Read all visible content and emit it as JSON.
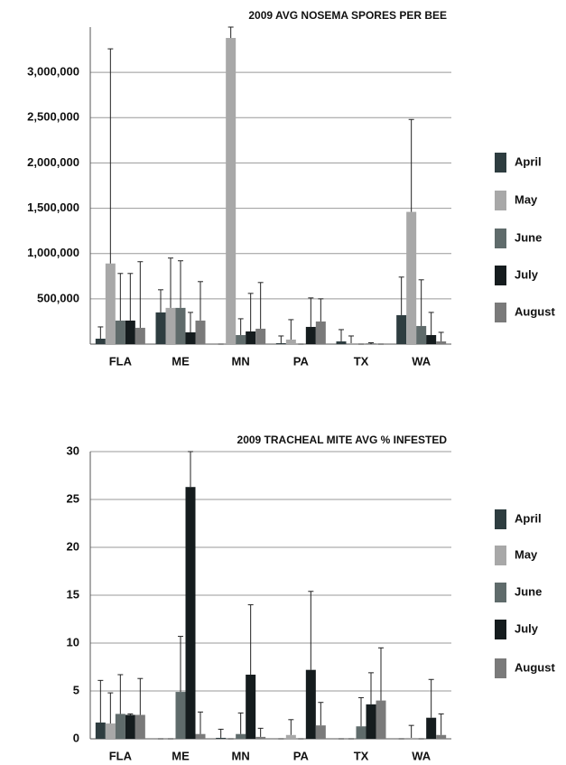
{
  "chart_data": [
    {
      "type": "bar",
      "title": "2009 AVG NOSEMA SPORES PER BEE",
      "categories": [
        "FLA",
        "ME",
        "MN",
        "PA",
        "TX",
        "WA"
      ],
      "ylim": [
        0,
        3500000
      ],
      "yticks": [
        {
          "value": 500000,
          "label": "500,000"
        },
        {
          "value": 1000000,
          "label": "1,000,000"
        },
        {
          "value": 1500000,
          "label": "1,500,000"
        },
        {
          "value": 2000000,
          "label": "2,000,000"
        },
        {
          "value": 2500000,
          "label": "2,500,000"
        },
        {
          "value": 3000000,
          "label": "3,000,000"
        }
      ],
      "grid": true,
      "series": [
        {
          "name": "April",
          "color": "#2e3d40",
          "values": [
            60000,
            350000,
            0,
            10000,
            30000,
            320000
          ],
          "errors": [
            130000,
            250000,
            0,
            80000,
            130000,
            420000
          ]
        },
        {
          "name": "May",
          "color": "#a8a8a8",
          "values": [
            890000,
            400000,
            3380000,
            50000,
            10000,
            1460000
          ],
          "errors": [
            2370000,
            550000,
            130000,
            220000,
            80000,
            1020000
          ]
        },
        {
          "name": "June",
          "color": "#5f6b6b",
          "values": [
            260000,
            400000,
            100000,
            0,
            0,
            200000
          ],
          "errors": [
            520000,
            520000,
            180000,
            0,
            0,
            510000
          ]
        },
        {
          "name": "July",
          "color": "#151c1e",
          "values": [
            260000,
            130000,
            140000,
            190000,
            5000,
            100000
          ],
          "errors": [
            520000,
            220000,
            420000,
            320000,
            10000,
            250000
          ]
        },
        {
          "name": "August",
          "color": "#7a7a7a",
          "values": [
            180000,
            260000,
            170000,
            250000,
            0,
            30000
          ],
          "errors": [
            730000,
            430000,
            510000,
            250000,
            0,
            100000
          ]
        }
      ]
    },
    {
      "type": "bar",
      "title": "2009 TRACHEAL MITE AVG % INFESTED",
      "categories": [
        "FLA",
        "ME",
        "MN",
        "PA",
        "TX",
        "WA"
      ],
      "ylim": [
        0,
        30
      ],
      "yticks": [
        0,
        5,
        10,
        15,
        20,
        25,
        30
      ],
      "grid": true,
      "series": [
        {
          "name": "April",
          "color": "#2e3d40",
          "values": [
            1.7,
            0,
            0.1,
            0,
            0,
            0
          ],
          "errors": [
            4.4,
            0,
            0.9,
            0,
            0,
            0
          ]
        },
        {
          "name": "May",
          "color": "#a8a8a8",
          "values": [
            1.6,
            0,
            0,
            0.4,
            0,
            0.1
          ],
          "errors": [
            3.2,
            0,
            0,
            1.6,
            0,
            1.3
          ]
        },
        {
          "name": "June",
          "color": "#5f6b6b",
          "values": [
            2.6,
            4.9,
            0.5,
            0,
            1.3,
            0
          ],
          "errors": [
            4.1,
            5.8,
            2.2,
            0,
            3.0,
            0
          ]
        },
        {
          "name": "July",
          "color": "#151c1e",
          "values": [
            2.5,
            26.3,
            6.7,
            7.2,
            3.6,
            2.2
          ],
          "errors": [
            0.1,
            3.7,
            7.3,
            8.2,
            3.3,
            4.0
          ]
        },
        {
          "name": "August",
          "color": "#7a7a7a",
          "values": [
            2.5,
            0.5,
            0.2,
            1.4,
            4.0,
            0.4
          ],
          "errors": [
            3.8,
            2.3,
            0.9,
            2.4,
            5.5,
            2.2
          ]
        }
      ]
    }
  ]
}
